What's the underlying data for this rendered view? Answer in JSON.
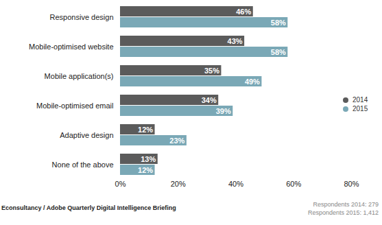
{
  "chart_data": {
    "type": "bar",
    "orientation": "horizontal",
    "categories": [
      "Responsive design",
      "Mobile-optimised website",
      "Mobile application(s)",
      "Mobile-optimised email",
      "Adaptive design",
      "None of the above"
    ],
    "series": [
      {
        "name": "2014",
        "color": "#5b5b5b",
        "values": [
          46,
          43,
          35,
          34,
          12,
          13
        ],
        "value_labels": [
          "46%",
          "43%",
          "35%",
          "34%",
          "12%",
          "13%"
        ]
      },
      {
        "name": "2015",
        "color": "#7aa8b6",
        "values": [
          58,
          58,
          49,
          39,
          23,
          12
        ],
        "value_labels": [
          "58%",
          "58%",
          "49%",
          "39%",
          "23%",
          "12%"
        ]
      }
    ],
    "xlim": [
      0,
      80
    ],
    "xticks": [
      {
        "value": 0,
        "label": "0%"
      },
      {
        "value": 20,
        "label": "20%"
      },
      {
        "value": 40,
        "label": "40%"
      },
      {
        "value": 60,
        "label": "60%"
      },
      {
        "value": 80,
        "label": "80%"
      }
    ],
    "grid": false,
    "data_labels": true,
    "legend": "right",
    "caption": "Econsultancy / Adobe Quarterly Digital Intelligence Briefing",
    "annotations": [
      "Respondents 2015: 1,412",
      "Respondents 2014: 279"
    ]
  }
}
